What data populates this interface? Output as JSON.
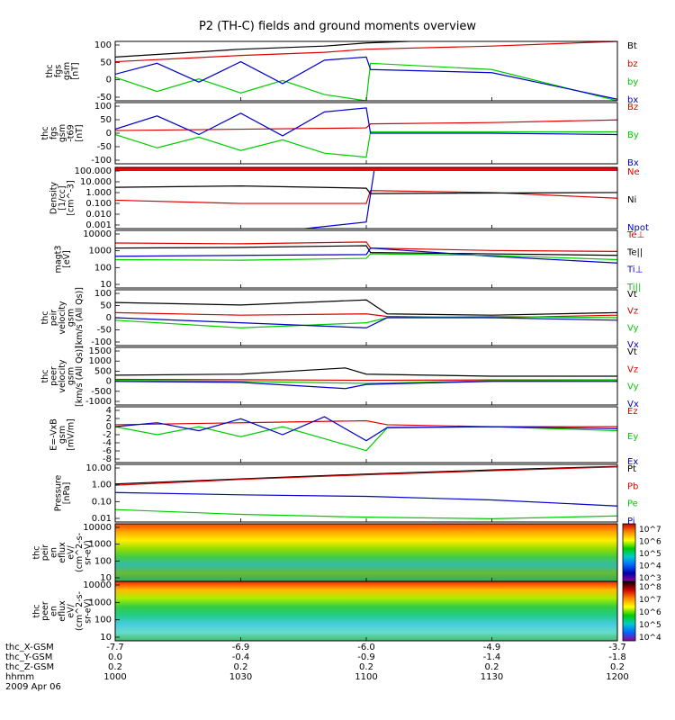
{
  "title": "P2 (TH-C) fields and ground moments overview",
  "chart_data": [
    {
      "type": "line",
      "id": "fgs",
      "ylabel": [
        "thc",
        "fgs",
        "gsm",
        "[nT]"
      ],
      "yticks": [
        "100",
        "50",
        "0",
        "-50"
      ],
      "ylim": [
        -80,
        110
      ],
      "legend": [
        {
          "name": "Bt",
          "color": "#000000"
        },
        {
          "name": "bz",
          "color": "#dd0000"
        },
        {
          "name": "by",
          "color": "#00cc00"
        },
        {
          "name": "bx",
          "color": "#0000cc"
        }
      ],
      "series": [
        {
          "name": "Bt",
          "color": "#000000",
          "x": [
            1000,
            1030,
            1050,
            1100,
            1130,
            1200
          ],
          "y": [
            60,
            85,
            95,
            105,
            120,
            130
          ]
        },
        {
          "name": "bz",
          "color": "#dd0000",
          "x": [
            1000,
            1030,
            1050,
            1100,
            1130,
            1200
          ],
          "y": [
            45,
            65,
            75,
            85,
            95,
            110
          ]
        },
        {
          "name": "by",
          "color": "#00cc00",
          "x": [
            1000,
            1010,
            1020,
            1030,
            1040,
            1050,
            1100,
            1101,
            1130,
            1200
          ],
          "y": [
            -5,
            -50,
            -10,
            -55,
            -15,
            -60,
            -80,
            40,
            20,
            -80
          ]
        },
        {
          "name": "bx",
          "color": "#0000cc",
          "x": [
            1000,
            1010,
            1020,
            1030,
            1040,
            1050,
            1100,
            1101,
            1130,
            1200
          ],
          "y": [
            5,
            40,
            -20,
            45,
            -25,
            50,
            60,
            20,
            10,
            -75
          ]
        }
      ]
    },
    {
      "type": "line",
      "id": "fgs_t169",
      "ylabel": [
        "thc",
        "fgs",
        "gsm",
        "-t69",
        "[nT]"
      ],
      "yticks": [
        "100",
        "50",
        "0",
        "-50",
        "-100"
      ],
      "ylim": [
        -120,
        110
      ],
      "legend": [
        {
          "name": "Bz",
          "color": "#dd0000"
        },
        {
          "name": "By",
          "color": "#00cc00"
        },
        {
          "name": "Bx",
          "color": "#0000cc"
        }
      ],
      "series": [
        {
          "name": "Bz",
          "color": "#dd0000",
          "x": [
            1000,
            1030,
            1100,
            1101,
            1130,
            1200
          ],
          "y": [
            5,
            10,
            15,
            30,
            35,
            45
          ]
        },
        {
          "name": "By",
          "color": "#00cc00",
          "x": [
            1000,
            1010,
            1020,
            1030,
            1040,
            1050,
            1100,
            1101,
            1130,
            1200
          ],
          "y": [
            -10,
            -60,
            -20,
            -70,
            -30,
            -80,
            -95,
            0,
            0,
            0
          ]
        },
        {
          "name": "Bx",
          "color": "#0000cc",
          "x": [
            1000,
            1010,
            1020,
            1030,
            1040,
            1050,
            1100,
            1101,
            1130,
            1200
          ],
          "y": [
            10,
            60,
            -10,
            70,
            -15,
            75,
            90,
            -5,
            -5,
            -10
          ]
        }
      ]
    },
    {
      "type": "line",
      "id": "density",
      "scale": "log",
      "ylabel": [
        "Density",
        "[1/cc]",
        "[cm^-3]"
      ],
      "yticks": [
        "100.000",
        "10.000",
        "1.000",
        "0.100",
        "0.010",
        "0.001"
      ],
      "ylim": [
        0.0005,
        200
      ],
      "legend": [
        {
          "name": "Ne",
          "color": "#dd0000"
        },
        {
          "name": "Ni",
          "color": "#000000"
        },
        {
          "name": "Npot",
          "color": "#0000cc"
        }
      ],
      "series": [
        {
          "name": "Ne",
          "color": "#dd0000",
          "x": [
            1000,
            1030,
            1100,
            1101,
            1130,
            1200
          ],
          "y": [
            0.2,
            0.1,
            0.1,
            1.5,
            1.0,
            0.3
          ]
        },
        {
          "name": "Ni",
          "color": "#000000",
          "x": [
            1000,
            1030,
            1100,
            1101,
            1130,
            1200
          ],
          "y": [
            3.0,
            4.0,
            2.5,
            0.8,
            0.9,
            1.0
          ]
        },
        {
          "name": "Npot",
          "color": "#0000cc",
          "x": [
            1000,
            1040,
            1100,
            1102,
            1110
          ],
          "y": [
            0.0003,
            0.0003,
            0.002,
            200,
            200
          ]
        }
      ]
    },
    {
      "type": "line",
      "id": "magt3",
      "scale": "log",
      "ylabel": [
        "magt3",
        "[eV]"
      ],
      "yticks": [
        "10000",
        "1000",
        "100",
        "10"
      ],
      "ylim": [
        10,
        10000
      ],
      "legend": [
        {
          "name": "Te⊥",
          "color": "#dd0000"
        },
        {
          "name": "Te||",
          "color": "#000000"
        },
        {
          "name": "Ti⊥",
          "color": "#0000cc"
        },
        {
          "name": "Ti||",
          "color": "#00cc00"
        }
      ],
      "series": [
        {
          "name": "Te⊥",
          "color": "#dd0000",
          "x": [
            1000,
            1030,
            1100,
            1101,
            1130,
            1200
          ],
          "y": [
            2200,
            2000,
            2500,
            1200,
            900,
            800
          ]
        },
        {
          "name": "Te||",
          "color": "#000000",
          "x": [
            1000,
            1030,
            1100,
            1101,
            1130,
            1200
          ],
          "y": [
            1200,
            1300,
            1600,
            700,
            600,
            500
          ]
        },
        {
          "name": "Ti⊥",
          "color": "#0000cc",
          "x": [
            1000,
            1030,
            1100,
            1101,
            1130,
            1200
          ],
          "y": [
            450,
            500,
            550,
            1200,
            450,
            200
          ]
        },
        {
          "name": "Ti||",
          "color": "#00cc00",
          "x": [
            1000,
            1030,
            1100,
            1101,
            1130,
            1200
          ],
          "y": [
            300,
            280,
            350,
            600,
            500,
            300
          ]
        }
      ]
    },
    {
      "type": "line",
      "id": "peir_velocity",
      "ylabel": [
        "thc",
        "peir",
        "velocity",
        "gsm",
        "[km/s (All Qs)]"
      ],
      "yticks": [
        "100",
        "50",
        "0",
        "-50",
        "-100"
      ],
      "ylim": [
        -110,
        110
      ],
      "legend": [
        {
          "name": "Vt",
          "color": "#000000"
        },
        {
          "name": "Vz",
          "color": "#dd0000"
        },
        {
          "name": "Vy",
          "color": "#00cc00"
        },
        {
          "name": "Vx",
          "color": "#0000cc"
        }
      ],
      "series": [
        {
          "name": "Vt",
          "color": "#000000",
          "x": [
            1000,
            1030,
            1100,
            1105,
            1130,
            1200
          ],
          "y": [
            60,
            50,
            70,
            15,
            10,
            20
          ]
        },
        {
          "name": "Vz",
          "color": "#dd0000",
          "x": [
            1000,
            1030,
            1100,
            1105,
            1130,
            1200
          ],
          "y": [
            20,
            10,
            15,
            5,
            0,
            10
          ]
        },
        {
          "name": "Vy",
          "color": "#00cc00",
          "x": [
            1000,
            1030,
            1100,
            1105,
            1130,
            1200
          ],
          "y": [
            -10,
            -40,
            -20,
            0,
            5,
            0
          ]
        },
        {
          "name": "Vx",
          "color": "#0000cc",
          "x": [
            1000,
            1030,
            1100,
            1105,
            1130,
            1200
          ],
          "y": [
            0,
            -20,
            -40,
            0,
            0,
            -10
          ]
        }
      ]
    },
    {
      "type": "line",
      "id": "peer_velocity",
      "ylabel": [
        "thc",
        "peer",
        "velocity",
        "gsm",
        "[km/s (All Qs)]"
      ],
      "yticks": [
        "1500",
        "1000",
        "500",
        "0",
        "-500",
        "-1000"
      ],
      "ylim": [
        -1200,
        1600
      ],
      "legend": [
        {
          "name": "Vt",
          "color": "#000000"
        },
        {
          "name": "Vz",
          "color": "#dd0000"
        },
        {
          "name": "Vy",
          "color": "#00cc00"
        },
        {
          "name": "Vx",
          "color": "#0000cc"
        }
      ],
      "series": [
        {
          "name": "Vt",
          "color": "#000000",
          "x": [
            1000,
            1030,
            1055,
            1100,
            1130,
            1200
          ],
          "y": [
            250,
            300,
            600,
            300,
            200,
            200
          ]
        },
        {
          "name": "Vz",
          "color": "#dd0000",
          "x": [
            1000,
            1030,
            1100,
            1130,
            1200
          ],
          "y": [
            50,
            30,
            0,
            20,
            20
          ]
        },
        {
          "name": "Vy",
          "color": "#00cc00",
          "x": [
            1000,
            1030,
            1100,
            1130,
            1200
          ],
          "y": [
            0,
            -50,
            -150,
            -20,
            0
          ]
        },
        {
          "name": "Vx",
          "color": "#0000cc",
          "x": [
            1000,
            1030,
            1055,
            1100,
            1130,
            1200
          ],
          "y": [
            -50,
            -100,
            -400,
            -200,
            -50,
            -50
          ]
        }
      ]
    },
    {
      "type": "line",
      "id": "efield",
      "ylabel": [
        "E=-VxB",
        "gsm",
        "[mV/m]"
      ],
      "yticks": [
        "4",
        "2",
        "0",
        "-2",
        "-4",
        "-6",
        "-8"
      ],
      "ylim": [
        -9,
        5
      ],
      "legend": [
        {
          "name": "Ez",
          "color": "#dd0000"
        },
        {
          "name": "Ey",
          "color": "#00cc00"
        },
        {
          "name": "Ex",
          "color": "#0000cc"
        }
      ],
      "series": [
        {
          "name": "Ez",
          "color": "#dd0000",
          "x": [
            1000,
            1030,
            1100,
            1105,
            1130,
            1200
          ],
          "y": [
            0.5,
            1.0,
            1.5,
            0.5,
            0,
            0
          ]
        },
        {
          "name": "Ey",
          "color": "#00cc00",
          "x": [
            1000,
            1010,
            1020,
            1030,
            1040,
            1050,
            1100,
            1105,
            1130,
            1200
          ],
          "y": [
            0,
            -2,
            0,
            -2.5,
            0,
            -3,
            -6,
            -0.3,
            0,
            -1
          ]
        },
        {
          "name": "Ex",
          "color": "#0000cc",
          "x": [
            1000,
            1010,
            1020,
            1030,
            1040,
            1050,
            1100,
            1105,
            1130,
            1200
          ],
          "y": [
            0,
            1,
            -1,
            2,
            -2,
            2.5,
            -3.5,
            -0.2,
            0,
            -0.5
          ]
        }
      ]
    },
    {
      "type": "line",
      "id": "pressure",
      "scale": "log",
      "ylabel": [
        "Pressure",
        "[nPa]"
      ],
      "yticks": [
        "10.00",
        "1.00",
        "0.10",
        "0.01"
      ],
      "ylim": [
        0.005,
        20
      ],
      "legend": [
        {
          "name": "Pt",
          "color": "#000000"
        },
        {
          "name": "Pb",
          "color": "#dd0000"
        },
        {
          "name": "Pe",
          "color": "#00cc00"
        },
        {
          "name": "Pi",
          "color": "#0000cc"
        }
      ],
      "series": [
        {
          "name": "Pt",
          "color": "#000000",
          "x": [
            1000,
            1030,
            1100,
            1130,
            1200
          ],
          "y": [
            1.2,
            2.5,
            5,
            9,
            15
          ]
        },
        {
          "name": "Pb",
          "color": "#dd0000",
          "x": [
            1000,
            1030,
            1100,
            1130,
            1200
          ],
          "y": [
            1.0,
            2.3,
            4.5,
            8,
            14
          ]
        },
        {
          "name": "Pe",
          "color": "#00cc00",
          "x": [
            1000,
            1030,
            1100,
            1130,
            1200
          ],
          "y": [
            0.03,
            0.015,
            0.01,
            0.008,
            0.012
          ]
        },
        {
          "name": "Pi",
          "color": "#0000cc",
          "x": [
            1000,
            1030,
            1100,
            1130,
            1200
          ],
          "y": [
            0.35,
            0.25,
            0.2,
            0.12,
            0.05
          ]
        }
      ]
    },
    {
      "type": "heatmap",
      "id": "peir_eflux",
      "ylabel": [
        "thc",
        "peir",
        "en",
        "eflux",
        "eV/",
        "(cm^2-s-",
        "sr-eV)"
      ],
      "yticks": [
        "10000",
        "1000",
        "100",
        "10"
      ],
      "colorbar_ticks": [
        "10^7",
        "10^6",
        "10^5",
        "10^4",
        "10^3"
      ],
      "colormap": [
        "#cc0000",
        "#ff8800",
        "#ffff00",
        "#00cc00",
        "#00cccc",
        "#0066ff",
        "#0000aa",
        "#990099"
      ]
    },
    {
      "type": "heatmap",
      "id": "peer_eflux",
      "ylabel": [
        "thc",
        "peer",
        "en",
        "eflux",
        "eV/",
        "(cm^2-s-",
        "sr-eV)"
      ],
      "yticks": [
        "10000",
        "1000",
        "100",
        "10"
      ],
      "colorbar_ticks": [
        "10^8",
        "10^7",
        "10^6",
        "10^5",
        "10^4"
      ],
      "colormap": [
        "#000000",
        "#cc0000",
        "#ff8800",
        "#ffff00",
        "#00cc00",
        "#00cccc",
        "#0066ff",
        "#990099"
      ]
    }
  ],
  "xaxis": {
    "rows": [
      {
        "label": "thc_X-GSM",
        "values": [
          "-7.7",
          "-6.9",
          "-6.0",
          "-4.9",
          "-3.7"
        ]
      },
      {
        "label": "thc_Y-GSM",
        "values": [
          "0.0",
          "-0.4",
          "-0.9",
          "-1.4",
          "-1.8"
        ]
      },
      {
        "label": "thc_Z-GSM",
        "values": [
          "0.2",
          "0.2",
          "0.2",
          "0.2",
          "0.2"
        ]
      },
      {
        "label": "hhmm",
        "values": [
          "1000",
          "1030",
          "1100",
          "1130",
          "1200"
        ]
      }
    ],
    "date": "2009 Apr 06",
    "ticks": [
      1000,
      1030,
      1100,
      1130,
      1200
    ]
  }
}
